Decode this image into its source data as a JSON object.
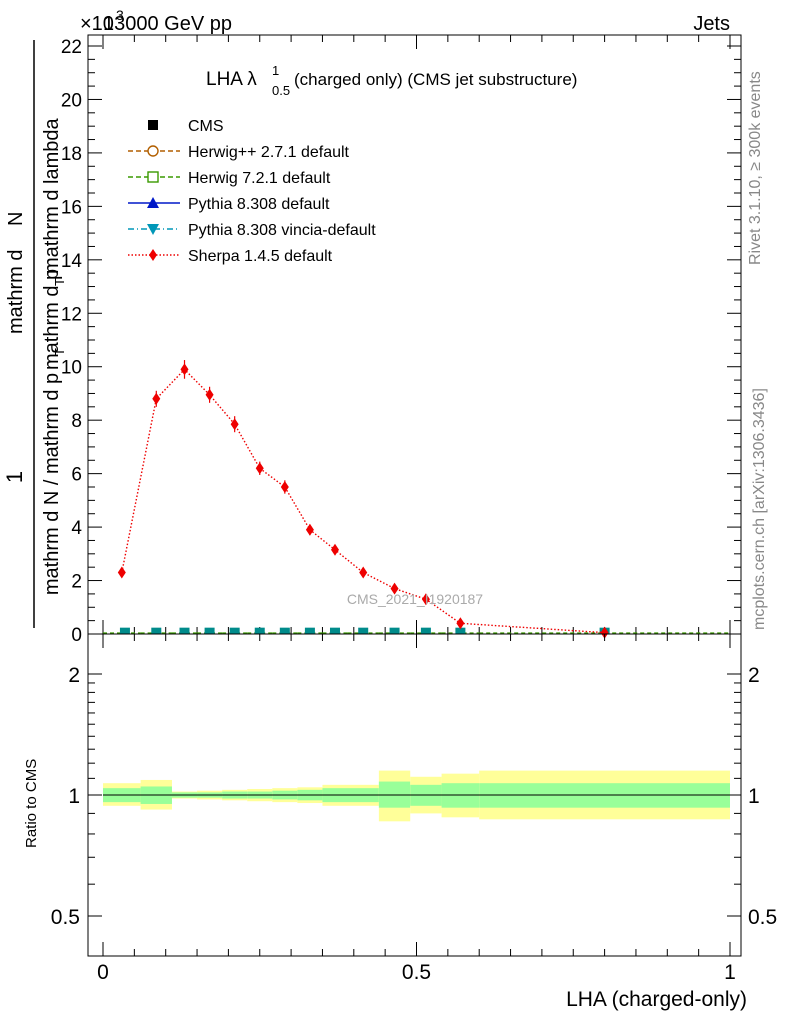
{
  "header": {
    "energy_label": "13000 GeV pp",
    "multiplier": "×10",
    "multiplier_exp": "3",
    "category": "Jets"
  },
  "side_labels": {
    "rivet": "Rivet 3.1.10, ≥ 300k events",
    "mcplots": "mcplots.cern.ch [arXiv:1306.3436]"
  },
  "main_plot": {
    "title_main": "LHA λ",
    "title_sup": "1",
    "title_sub": "0.5",
    "title_rest": " (charged only) (CMS jet substructure)",
    "ylabel_one": "1",
    "ylabel_denominator": "mathrm d N / mathrm d p",
    "ylabel_denominator_sub": "T",
    "ylabel_numerator_a": "mathrm d",
    "ylabel_numerator_b": "N",
    "ylabel_numerator_c": "mathrm d p",
    "ylabel_numerator_c_sub": "T",
    "ylabel_numerator_d": " mathrm d lambda",
    "watermark": "CMS_2021_I1920187"
  },
  "ratio_plot": {
    "ylabel": "Ratio to CMS",
    "xlabel": "LHA (charged-only)"
  },
  "legend": [
    {
      "label": "CMS",
      "color": "#000000",
      "marker": "square-filled",
      "line": "none"
    },
    {
      "label": "Herwig++ 2.7.1 default",
      "color": "#b25f00",
      "marker": "circle-open",
      "line": "dashed"
    },
    {
      "label": "Herwig 7.2.1 default",
      "color": "#3a9a00",
      "marker": "square-open",
      "line": "dashed"
    },
    {
      "label": "Pythia 8.308 default",
      "color": "#0018c8",
      "marker": "triangle-up",
      "line": "solid"
    },
    {
      "label": "Pythia 8.308 vincia-default",
      "color": "#0097b8",
      "marker": "triangle-down",
      "line": "dashdot"
    },
    {
      "label": "Sherpa 1.4.5 default",
      "color": "#ee0000",
      "marker": "diamond",
      "line": "dotted"
    }
  ],
  "chart_data": {
    "type": "line",
    "title": "LHA λ^1_0.5 (charged only) (CMS jet substructure)",
    "xlabel": "LHA (charged-only)",
    "ylabel": "(1 / dN/dpT) d²N / dpT dλ",
    "xlim": [
      0,
      1
    ],
    "main_ylim": [
      0,
      22.4
    ],
    "y_multiplier": 1000,
    "main_yticks": [
      0,
      2,
      4,
      6,
      8,
      10,
      12,
      14,
      16,
      18,
      20,
      22
    ],
    "xticks": [
      0,
      0.5,
      1
    ],
    "xtick_labels": [
      "0",
      "0.5",
      "1"
    ],
    "ratio_ylim": [
      0.45,
      2.4
    ],
    "ratio_yticks": [
      0.5,
      1,
      2
    ],
    "ratio_ytick_labels": [
      "0.5",
      "1",
      "2"
    ],
    "bin_edges": [
      0,
      0.06,
      0.11,
      0.15,
      0.19,
      0.23,
      0.27,
      0.31,
      0.35,
      0.39,
      0.44,
      0.49,
      0.54,
      0.6,
      1.0
    ],
    "cms": {
      "x": [
        0.035,
        0.085,
        0.13,
        0.17,
        0.21,
        0.25,
        0.29,
        0.33,
        0.37,
        0.415,
        0.465,
        0.515,
        0.57,
        0.8
      ],
      "y": [
        0.05,
        0.05,
        0.05,
        0.05,
        0.05,
        0.05,
        0.05,
        0.05,
        0.05,
        0.05,
        0.05,
        0.05,
        0.05,
        0.05
      ]
    },
    "series": [
      {
        "name": "Sherpa 1.4.5 default",
        "x": [
          0.03,
          0.085,
          0.13,
          0.17,
          0.21,
          0.25,
          0.29,
          0.33,
          0.37,
          0.415,
          0.465,
          0.515,
          0.57,
          0.8
        ],
        "y": [
          2.3,
          8.8,
          9.9,
          8.95,
          7.85,
          6.2,
          5.5,
          3.9,
          3.15,
          2.3,
          1.7,
          1.3,
          0.4,
          0.05
        ],
        "err": [
          0.15,
          0.3,
          0.35,
          0.3,
          0.3,
          0.25,
          0.25,
          0.2,
          0.15,
          0.12,
          0.12,
          0.1,
          0.08,
          0.02
        ]
      }
    ],
    "ratio_bands": [
      {
        "x0": 0.0,
        "x1": 0.06,
        "inner": [
          0.96,
          1.04
        ],
        "outer": [
          0.94,
          1.07
        ]
      },
      {
        "x0": 0.06,
        "x1": 0.11,
        "inner": [
          0.95,
          1.05
        ],
        "outer": [
          0.92,
          1.09
        ]
      },
      {
        "x0": 0.11,
        "x1": 0.15,
        "inner": [
          0.985,
          1.015
        ],
        "outer": [
          0.98,
          1.02
        ]
      },
      {
        "x0": 0.15,
        "x1": 0.19,
        "inner": [
          0.985,
          1.015
        ],
        "outer": [
          0.975,
          1.025
        ]
      },
      {
        "x0": 0.19,
        "x1": 0.23,
        "inner": [
          0.98,
          1.02
        ],
        "outer": [
          0.97,
          1.03
        ]
      },
      {
        "x0": 0.23,
        "x1": 0.27,
        "inner": [
          0.98,
          1.02
        ],
        "outer": [
          0.965,
          1.035
        ]
      },
      {
        "x0": 0.27,
        "x1": 0.31,
        "inner": [
          0.975,
          1.025
        ],
        "outer": [
          0.96,
          1.04
        ]
      },
      {
        "x0": 0.31,
        "x1": 0.35,
        "inner": [
          0.97,
          1.03
        ],
        "outer": [
          0.955,
          1.045
        ]
      },
      {
        "x0": 0.35,
        "x1": 0.44,
        "inner": [
          0.96,
          1.04
        ],
        "outer": [
          0.94,
          1.06
        ]
      },
      {
        "x0": 0.44,
        "x1": 0.49,
        "inner": [
          0.93,
          1.08
        ],
        "outer": [
          0.86,
          1.15
        ]
      },
      {
        "x0": 0.49,
        "x1": 0.54,
        "inner": [
          0.94,
          1.06
        ],
        "outer": [
          0.9,
          1.11
        ]
      },
      {
        "x0": 0.54,
        "x1": 0.6,
        "inner": [
          0.93,
          1.07
        ],
        "outer": [
          0.88,
          1.13
        ]
      },
      {
        "x0": 0.6,
        "x1": 1.0,
        "inner": [
          0.93,
          1.07
        ],
        "outer": [
          0.87,
          1.15
        ]
      }
    ],
    "band_colors": {
      "inner": "#99ff99",
      "outer": "#ffff99"
    }
  }
}
